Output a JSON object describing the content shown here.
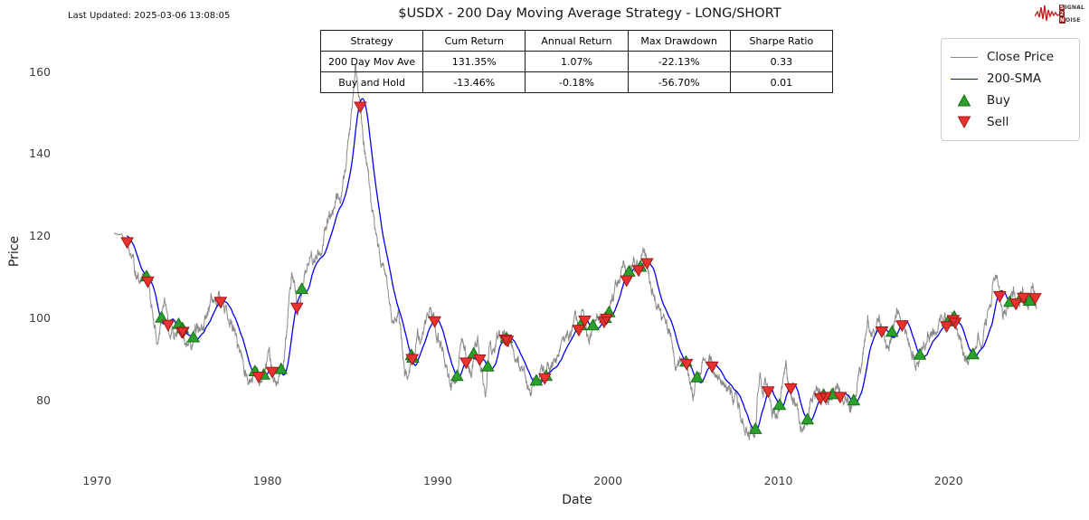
{
  "header": {
    "last_updated": "Last Updated: 2025-03-06 13:08:05",
    "title": "$USDX - 200 Day Moving Average Strategy - LONG/SHORT"
  },
  "stats_table": {
    "headers": [
      "Strategy",
      "Cum Return",
      "Annual Return",
      "Max Drawdown",
      "Sharpe Ratio"
    ],
    "rows": [
      [
        "200 Day Mov Ave",
        "131.35%",
        "1.07%",
        "-22.13%",
        "0.33"
      ],
      [
        "Buy and Hold",
        "-13.46%",
        "-0.18%",
        "-56.70%",
        "0.01"
      ]
    ]
  },
  "legend": {
    "items": [
      {
        "label": "Close Price",
        "type": "line",
        "color": "#8a8a8a"
      },
      {
        "label": "200-SMA",
        "type": "line",
        "color": "#0000f0"
      },
      {
        "label": "Buy",
        "type": "triangle-up",
        "color": "#2ca02c"
      },
      {
        "label": "Sell",
        "type": "triangle-down",
        "color": "#e8322e"
      }
    ]
  },
  "logo": {
    "line1_box": "S",
    "line1_text": "IGNAL",
    "line2_box": "2",
    "line3_box": "N",
    "line3_text": "OISE",
    "squiggle_color": "#c42222"
  },
  "axes": {
    "ylabel": "Price",
    "xlabel": "Date"
  },
  "chart_data": {
    "type": "line",
    "title": "$USDX - 200 Day Moving Average Strategy - LONG/SHORT",
    "xlabel": "Date",
    "ylabel": "Price",
    "x_ticks": [
      1970,
      1980,
      1990,
      2000,
      2010,
      2020
    ],
    "y_ticks": [
      160,
      140,
      120,
      100,
      80
    ],
    "x_range_years": [
      1967.4,
      2028.2
    ],
    "y_range_price": [
      67,
      168
    ],
    "grid": false,
    "legend_position": "upper right",
    "sma_window_days": 200,
    "signals": {
      "buy_rule": "close crosses above 200-SMA",
      "sell_rule": "close crosses below 200-SMA",
      "buy_color": "#2ca02c",
      "buy_edge": "#167016",
      "sell_color": "#e8322e",
      "sell_edge": "#a01818"
    },
    "series": [
      {
        "name": "Close Price",
        "color": "#8a8a8a",
        "keypoints": [
          [
            1971.0,
            120.6
          ],
          [
            1971.45,
            120.3
          ],
          [
            1971.7,
            118.5
          ],
          [
            1972.0,
            114.5
          ],
          [
            1972.4,
            111.5
          ],
          [
            1972.75,
            110.0
          ],
          [
            1973.0,
            109.0
          ],
          [
            1973.15,
            103.5
          ],
          [
            1973.35,
            97.0
          ],
          [
            1973.55,
            92.5
          ],
          [
            1973.75,
            99.0
          ],
          [
            1974.0,
            101.5
          ],
          [
            1974.2,
            96.5
          ],
          [
            1974.5,
            94.5
          ],
          [
            1974.75,
            99.0
          ],
          [
            1975.0,
            99.5
          ],
          [
            1975.2,
            96.0
          ],
          [
            1975.45,
            93.5
          ],
          [
            1975.75,
            95.5
          ],
          [
            1976.05,
            96.5
          ],
          [
            1976.35,
            99.5
          ],
          [
            1976.7,
            104.5
          ],
          [
            1977.05,
            105.5
          ],
          [
            1977.35,
            104.0
          ],
          [
            1977.7,
            101.5
          ],
          [
            1978.0,
            97.0
          ],
          [
            1978.3,
            93.5
          ],
          [
            1978.6,
            88.5
          ],
          [
            1978.85,
            83.8
          ],
          [
            1979.1,
            86.5
          ],
          [
            1979.4,
            87.5
          ],
          [
            1979.65,
            85.5
          ],
          [
            1979.9,
            86.0
          ],
          [
            1980.1,
            89.5
          ],
          [
            1980.35,
            84.8
          ],
          [
            1980.6,
            85.5
          ],
          [
            1980.85,
            88.0
          ],
          [
            1981.05,
            93.0
          ],
          [
            1981.25,
            102.0
          ],
          [
            1981.45,
            112.0
          ],
          [
            1981.6,
            108.0
          ],
          [
            1981.75,
            103.5
          ],
          [
            1981.95,
            107.0
          ],
          [
            1982.15,
            111.0
          ],
          [
            1982.35,
            113.5
          ],
          [
            1982.6,
            117.0
          ],
          [
            1982.75,
            114.0
          ],
          [
            1982.95,
            117.5
          ],
          [
            1983.15,
            115.5
          ],
          [
            1983.35,
            120.5
          ],
          [
            1983.6,
            124.5
          ],
          [
            1983.9,
            127.0
          ],
          [
            1984.1,
            129.5
          ],
          [
            1984.35,
            131.5
          ],
          [
            1984.6,
            138.0
          ],
          [
            1984.75,
            142.0
          ],
          [
            1984.9,
            147.5
          ],
          [
            1985.0,
            152.0
          ],
          [
            1985.17,
            163.2
          ],
          [
            1985.35,
            155.0
          ],
          [
            1985.55,
            147.5
          ],
          [
            1985.75,
            141.0
          ],
          [
            1985.95,
            135.0
          ],
          [
            1986.15,
            125.0
          ],
          [
            1986.45,
            116.5
          ],
          [
            1986.75,
            112.5
          ],
          [
            1987.0,
            108.0
          ],
          [
            1987.2,
            102.0
          ],
          [
            1987.5,
            99.0
          ],
          [
            1987.7,
            101.0
          ],
          [
            1987.85,
            96.0
          ],
          [
            1988.05,
            88.0
          ],
          [
            1988.25,
            86.5
          ],
          [
            1988.45,
            89.5
          ],
          [
            1988.65,
            92.5
          ],
          [
            1988.8,
            97.5
          ],
          [
            1989.0,
            94.5
          ],
          [
            1989.2,
            97.0
          ],
          [
            1989.45,
            101.5
          ],
          [
            1989.7,
            98.5
          ],
          [
            1990.0,
            94.5
          ],
          [
            1990.3,
            92.0
          ],
          [
            1990.6,
            87.5
          ],
          [
            1990.95,
            82.5
          ],
          [
            1991.15,
            86.0
          ],
          [
            1991.4,
            95.5
          ],
          [
            1991.65,
            90.5
          ],
          [
            1991.9,
            86.0
          ],
          [
            1992.1,
            89.5
          ],
          [
            1992.35,
            93.5
          ],
          [
            1992.6,
            87.0
          ],
          [
            1992.8,
            79.5
          ],
          [
            1993.0,
            92.0
          ],
          [
            1993.3,
            90.0
          ],
          [
            1993.6,
            95.5
          ],
          [
            1993.9,
            96.5
          ],
          [
            1994.2,
            94.5
          ],
          [
            1994.5,
            90.5
          ],
          [
            1994.8,
            87.5
          ],
          [
            1995.05,
            84.5
          ],
          [
            1995.35,
            81.5
          ],
          [
            1995.6,
            85.0
          ],
          [
            1995.9,
            84.5
          ],
          [
            1996.2,
            86.0
          ],
          [
            1996.5,
            87.0
          ],
          [
            1996.8,
            87.5
          ],
          [
            1997.1,
            92.5
          ],
          [
            1997.4,
            96.0
          ],
          [
            1997.7,
            95.5
          ],
          [
            1998.0,
            99.5
          ],
          [
            1998.3,
            98.5
          ],
          [
            1998.55,
            101.5
          ],
          [
            1998.8,
            94.5
          ],
          [
            1999.0,
            96.5
          ],
          [
            1999.3,
            100.0
          ],
          [
            1999.6,
            98.0
          ],
          [
            1999.9,
            100.5
          ],
          [
            2000.2,
            104.5
          ],
          [
            2000.5,
            107.0
          ],
          [
            2000.75,
            111.5
          ],
          [
            2000.95,
            113.5
          ],
          [
            2001.1,
            110.5
          ],
          [
            2001.3,
            114.5
          ],
          [
            2001.5,
            117.5
          ],
          [
            2001.65,
            115.0
          ],
          [
            2001.85,
            113.5
          ],
          [
            2002.0,
            117.0
          ],
          [
            2002.15,
            116.0
          ],
          [
            2002.35,
            112.0
          ],
          [
            2002.55,
            108.0
          ],
          [
            2002.75,
            106.5
          ],
          [
            2002.95,
            104.0
          ],
          [
            2003.15,
            100.0
          ],
          [
            2003.4,
            97.0
          ],
          [
            2003.6,
            95.5
          ],
          [
            2003.75,
            93.0
          ],
          [
            2003.95,
            88.5
          ],
          [
            2004.15,
            87.5
          ],
          [
            2004.35,
            90.5
          ],
          [
            2004.55,
            89.0
          ],
          [
            2004.75,
            85.0
          ],
          [
            2004.95,
            81.5
          ],
          [
            2005.15,
            84.0
          ],
          [
            2005.4,
            86.5
          ],
          [
            2005.65,
            89.5
          ],
          [
            2005.9,
            91.5
          ],
          [
            2006.1,
            89.5
          ],
          [
            2006.35,
            85.5
          ],
          [
            2006.65,
            85.0
          ],
          [
            2006.9,
            84.5
          ],
          [
            2007.15,
            82.5
          ],
          [
            2007.45,
            81.5
          ],
          [
            2007.7,
            78.5
          ],
          [
            2007.95,
            76.0
          ],
          [
            2008.2,
            71.5
          ],
          [
            2008.45,
            72.5
          ],
          [
            2008.6,
            74.0
          ],
          [
            2008.8,
            83.0
          ],
          [
            2008.95,
            86.5
          ],
          [
            2009.1,
            81.5
          ],
          [
            2009.25,
            85.0
          ],
          [
            2009.45,
            82.5
          ],
          [
            2009.65,
            77.5
          ],
          [
            2009.9,
            74.8
          ],
          [
            2010.1,
            80.0
          ],
          [
            2010.3,
            82.0
          ],
          [
            2010.45,
            87.0
          ],
          [
            2010.6,
            84.5
          ],
          [
            2010.8,
            80.5
          ],
          [
            2011.0,
            78.5
          ],
          [
            2011.15,
            76.5
          ],
          [
            2011.35,
            73.5
          ],
          [
            2011.55,
            74.5
          ],
          [
            2011.75,
            76.5
          ],
          [
            2011.95,
            80.0
          ],
          [
            2012.15,
            79.0
          ],
          [
            2012.4,
            82.0
          ],
          [
            2012.6,
            80.5
          ],
          [
            2012.85,
            79.5
          ],
          [
            2013.05,
            80.0
          ],
          [
            2013.25,
            83.0
          ],
          [
            2013.5,
            84.0
          ],
          [
            2013.7,
            81.5
          ],
          [
            2013.95,
            80.5
          ],
          [
            2014.2,
            80.0
          ],
          [
            2014.5,
            80.5
          ],
          [
            2014.65,
            85.0
          ],
          [
            2014.85,
            88.5
          ],
          [
            2015.05,
            94.5
          ],
          [
            2015.25,
            99.5
          ],
          [
            2015.4,
            94.5
          ],
          [
            2015.6,
            96.5
          ],
          [
            2015.8,
            98.0
          ],
          [
            2015.95,
            98.5
          ],
          [
            2016.15,
            95.5
          ],
          [
            2016.35,
            94.0
          ],
          [
            2016.5,
            95.5
          ],
          [
            2016.65,
            96.0
          ],
          [
            2016.8,
            98.0
          ],
          [
            2016.95,
            102.5
          ],
          [
            2017.1,
            100.5
          ],
          [
            2017.3,
            99.5
          ],
          [
            2017.55,
            96.5
          ],
          [
            2017.75,
            93.0
          ],
          [
            2017.95,
            91.0
          ],
          [
            2018.1,
            89.5
          ],
          [
            2018.3,
            90.0
          ],
          [
            2018.5,
            94.0
          ],
          [
            2018.75,
            95.0
          ],
          [
            2018.95,
            96.5
          ],
          [
            2019.2,
            96.5
          ],
          [
            2019.4,
            97.5
          ],
          [
            2019.65,
            98.5
          ],
          [
            2019.85,
            97.5
          ],
          [
            2020.05,
            98.0
          ],
          [
            2020.2,
            102.5
          ],
          [
            2020.35,
            99.0
          ],
          [
            2020.5,
            96.5
          ],
          [
            2020.7,
            93.5
          ],
          [
            2020.95,
            90.5
          ],
          [
            2021.1,
            89.7
          ],
          [
            2021.35,
            91.0
          ],
          [
            2021.6,
            92.5
          ],
          [
            2021.8,
            94.0
          ],
          [
            2022.0,
            96.5
          ],
          [
            2022.2,
            99.0
          ],
          [
            2022.4,
            104.0
          ],
          [
            2022.55,
            107.0
          ],
          [
            2022.75,
            113.5
          ],
          [
            2022.9,
            110.5
          ],
          [
            2023.05,
            104.0
          ],
          [
            2023.2,
            101.5
          ],
          [
            2023.4,
            102.0
          ],
          [
            2023.6,
            103.0
          ],
          [
            2023.8,
            106.5
          ],
          [
            2023.95,
            103.5
          ],
          [
            2024.15,
            104.5
          ],
          [
            2024.35,
            105.5
          ],
          [
            2024.55,
            101.5
          ],
          [
            2024.75,
            104.5
          ],
          [
            2024.95,
            108.5
          ],
          [
            2025.05,
            107.5
          ],
          [
            2025.17,
            104.5
          ]
        ]
      },
      {
        "name": "200-SMA",
        "color": "#0000f0",
        "derived": "trailing 200-day moving average of Close Price"
      }
    ]
  }
}
